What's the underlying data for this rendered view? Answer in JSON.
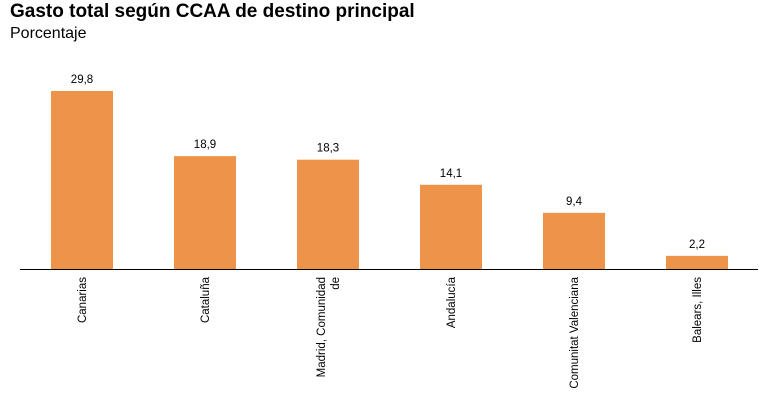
{
  "chart_data": {
    "type": "bar",
    "title": "Gasto total según CCAA de destino principal",
    "subtitle": "Porcentaje",
    "categories": [
      [
        "Canarias"
      ],
      [
        "Cataluña"
      ],
      [
        "Madrid, Comunidad",
        "de"
      ],
      [
        "Andalucía"
      ],
      [
        "Comunitat Valenciana"
      ],
      [
        "Balears, Illes"
      ]
    ],
    "values": [
      29.8,
      18.9,
      18.3,
      14.1,
      9.4,
      2.2
    ],
    "value_labels": [
      "29,8",
      "18,9",
      "18,3",
      "14,1",
      "9,4",
      "2,2"
    ],
    "xlabel": "",
    "ylabel": "",
    "ylim": [
      0,
      30
    ],
    "grid": false,
    "bar_color": "#EE944A",
    "axis_color": "#000000"
  }
}
